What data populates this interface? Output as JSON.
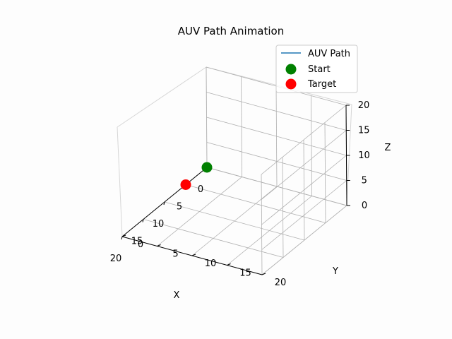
{
  "chart_data": {
    "type": "scatter",
    "projection": "3d",
    "title": "AUV Path Animation",
    "xlabel": "X",
    "ylabel": "Y",
    "zlabel": "Z",
    "xlim": [
      0,
      20
    ],
    "ylim": [
      0,
      20
    ],
    "zlim": [
      0,
      20
    ],
    "xticks": [
      0,
      5,
      10,
      15,
      20
    ],
    "yticks": [
      0,
      5,
      10,
      15,
      20
    ],
    "zticks": [
      0,
      5,
      10,
      15,
      20
    ],
    "grid": true,
    "legend_position": "top-right",
    "series": [
      {
        "name": "AUV Path",
        "kind": "line",
        "color": "#1f77b4",
        "points": []
      },
      {
        "name": "Start",
        "kind": "marker",
        "color": "#008000",
        "points": [
          [
            0,
            0,
            0
          ]
        ]
      },
      {
        "name": "Target",
        "kind": "marker",
        "color": "#ff0000",
        "points": [
          [
            5,
            0,
            0
          ]
        ]
      }
    ]
  }
}
